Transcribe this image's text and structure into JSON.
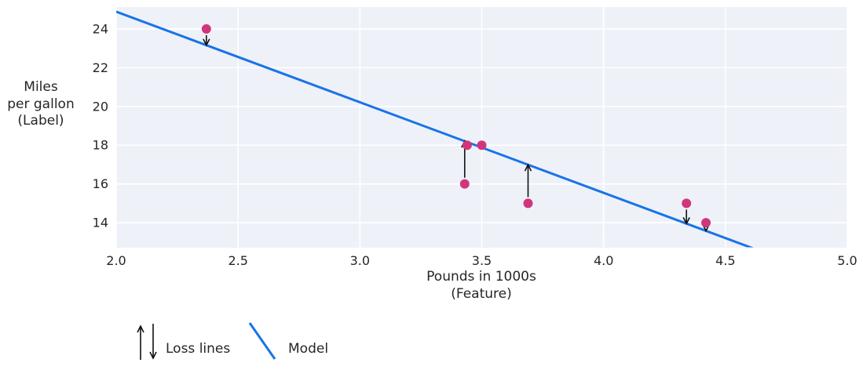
{
  "chart_data": {
    "type": "scatter",
    "title": "",
    "xlabel_lines": [
      "Pounds in 1000s",
      "(Feature)"
    ],
    "ylabel_lines": [
      "Miles",
      "per gallon",
      "(Label)"
    ],
    "xlim": [
      2.0,
      5.0
    ],
    "ylim": [
      12.73,
      25.13
    ],
    "xticks": [
      2.0,
      2.5,
      3.0,
      3.5,
      4.0,
      4.5,
      5.0
    ],
    "xtick_labels": [
      "2.0",
      "2.5",
      "3.0",
      "3.5",
      "4.0",
      "4.5",
      "5.0"
    ],
    "yticks": [
      14,
      16,
      18,
      20,
      22,
      24
    ],
    "ytick_labels": [
      "14",
      "16",
      "18",
      "20",
      "22",
      "24"
    ],
    "grid": true,
    "points": [
      {
        "x": 2.37,
        "y": 24,
        "loss_to": 23.16
      },
      {
        "x": 3.43,
        "y": 16,
        "loss_to": 18.21
      },
      {
        "x": 3.44,
        "y": 18,
        "loss_to": null
      },
      {
        "x": 3.5,
        "y": 18,
        "loss_to": null
      },
      {
        "x": 3.69,
        "y": 15,
        "loss_to": 16.99
      },
      {
        "x": 4.34,
        "y": 15,
        "loss_to": 13.95
      },
      {
        "x": 4.42,
        "y": 14,
        "loss_to": 13.58
      }
    ],
    "model_line": {
      "slope": -4.672,
      "intercept": 34.23,
      "x1": 2.0,
      "y1": 24.89,
      "x2": 5.0,
      "y2": 10.87
    },
    "legend": [
      {
        "label": "Loss lines",
        "symbol": "arrows"
      },
      {
        "label": "Model",
        "symbol": "line"
      }
    ]
  },
  "colors": {
    "model_line": "#1a73e8",
    "point": "#d1357b",
    "loss_arrow": "#111111",
    "plot_bg": "#eef1f8",
    "grid": "#ffffff",
    "text": "#262626"
  }
}
